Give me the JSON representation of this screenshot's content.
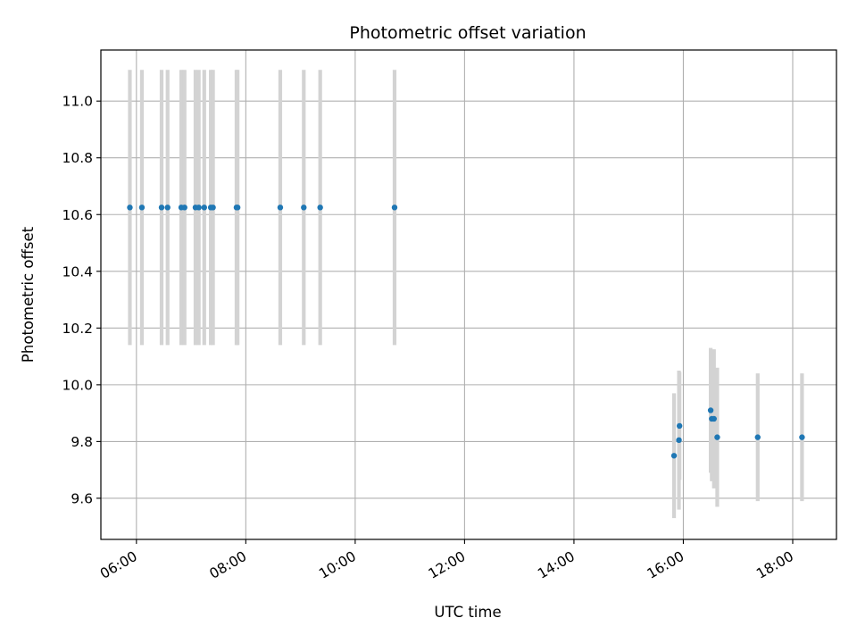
{
  "chart_data": {
    "type": "scatter",
    "title": "Photometric offset variation",
    "xlabel": "UTC time",
    "ylabel": "Photometric offset",
    "x_unit": "hours UTC",
    "xlim": [
      5.35,
      18.8
    ],
    "ylim": [
      9.455,
      11.18
    ],
    "grid": true,
    "x_ticks": [
      {
        "value": 6,
        "label": "06:00"
      },
      {
        "value": 8,
        "label": "08:00"
      },
      {
        "value": 10,
        "label": "10:00"
      },
      {
        "value": 12,
        "label": "12:00"
      },
      {
        "value": 14,
        "label": "14:00"
      },
      {
        "value": 16,
        "label": "16:00"
      },
      {
        "value": 18,
        "label": "18:00"
      }
    ],
    "y_ticks": [
      {
        "value": 9.6,
        "label": "9.6"
      },
      {
        "value": 9.8,
        "label": "9.8"
      },
      {
        "value": 10.0,
        "label": "10.0"
      },
      {
        "value": 10.2,
        "label": "10.2"
      },
      {
        "value": 10.4,
        "label": "10.4"
      },
      {
        "value": 10.6,
        "label": "10.6"
      },
      {
        "value": 10.8,
        "label": "10.8"
      },
      {
        "value": 11.0,
        "label": "11.0"
      }
    ],
    "colors": {
      "point": "#1f77b4",
      "errorbar": "#d3d3d3",
      "grid": "#b0b0b0"
    },
    "points": [
      {
        "x": 5.88,
        "y": 10.625,
        "err": 0.485
      },
      {
        "x": 6.1,
        "y": 10.625,
        "err": 0.485
      },
      {
        "x": 6.46,
        "y": 10.625,
        "err": 0.485
      },
      {
        "x": 6.57,
        "y": 10.625,
        "err": 0.485
      },
      {
        "x": 6.82,
        "y": 10.625,
        "err": 0.485
      },
      {
        "x": 6.88,
        "y": 10.625,
        "err": 0.485
      },
      {
        "x": 7.08,
        "y": 10.625,
        "err": 0.485
      },
      {
        "x": 7.14,
        "y": 10.625,
        "err": 0.485
      },
      {
        "x": 7.24,
        "y": 10.625,
        "err": 0.485
      },
      {
        "x": 7.36,
        "y": 10.625,
        "err": 0.485
      },
      {
        "x": 7.4,
        "y": 10.625,
        "err": 0.485
      },
      {
        "x": 7.83,
        "y": 10.625,
        "err": 0.485
      },
      {
        "x": 7.85,
        "y": 10.625,
        "err": 0.485
      },
      {
        "x": 8.63,
        "y": 10.625,
        "err": 0.485
      },
      {
        "x": 9.06,
        "y": 10.625,
        "err": 0.485
      },
      {
        "x": 9.36,
        "y": 10.625,
        "err": 0.485
      },
      {
        "x": 10.72,
        "y": 10.625,
        "err": 0.485
      },
      {
        "x": 15.83,
        "y": 9.75,
        "err": 0.22
      },
      {
        "x": 15.92,
        "y": 9.805,
        "err": 0.245
      },
      {
        "x": 15.93,
        "y": 9.855,
        "err": 0.19
      },
      {
        "x": 16.5,
        "y": 9.91,
        "err": 0.22
      },
      {
        "x": 16.52,
        "y": 9.88,
        "err": 0.22
      },
      {
        "x": 16.56,
        "y": 9.88,
        "err": 0.245
      },
      {
        "x": 16.62,
        "y": 9.815,
        "err": 0.245
      },
      {
        "x": 17.36,
        "y": 9.815,
        "err": 0.225
      },
      {
        "x": 18.17,
        "y": 9.815,
        "err": 0.225
      }
    ]
  }
}
